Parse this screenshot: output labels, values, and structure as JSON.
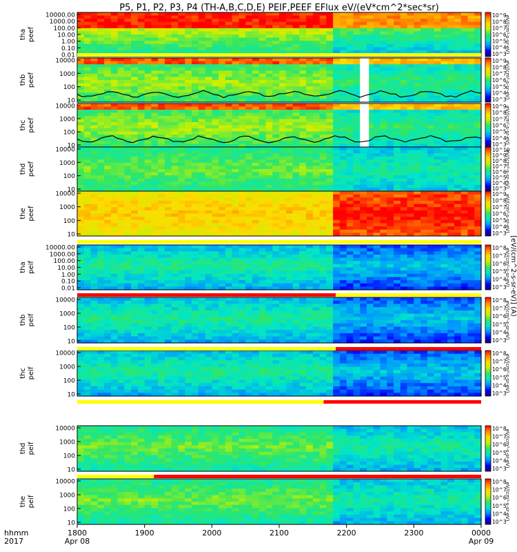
{
  "title": "P5, P1, P2, P3, P4 (TH-A,B,C,D,E) PEIF,PEEF EFlux eV/(eV*cm^2*sec*sr)",
  "colorbar_title": "[eV/(cm^2-s-sr-eV)] (A)",
  "colors": {
    "colormap": [
      "#1a0066",
      "#0000ff",
      "#0096ff",
      "#00e6c8",
      "#32e664",
      "#c8f000",
      "#ffdc00",
      "#ff8c00",
      "#ff0000"
    ],
    "boundary_line": "#000000",
    "flag_red": "#ff0000",
    "flag_yellow": "#ffff00",
    "data_gap": "#ffffff"
  },
  "x_axis": {
    "label_line1": "hhmm",
    "label_line2": "2017",
    "ticks": [
      {
        "time": "1800",
        "date": "Apr 08"
      },
      {
        "time": "1900",
        "date": ""
      },
      {
        "time": "2000",
        "date": ""
      },
      {
        "time": "2100",
        "date": ""
      },
      {
        "time": "2200",
        "date": ""
      },
      {
        "time": "2300",
        "date": ""
      },
      {
        "time": "0000",
        "date": "Apr 09"
      }
    ]
  },
  "chart_data": [
    {
      "type": "heatmap",
      "probe": "tha",
      "species": "peef",
      "ylabel": [
        "tha",
        "peef"
      ],
      "y_ticks": [
        "10000.00",
        "1000.00",
        "100.00",
        "10.00",
        "1.00",
        "0.10",
        "0.01"
      ],
      "colorbar_ticks": [
        "10^9",
        "10^8",
        "10^7",
        "10^6",
        "10^5",
        "10^4",
        "10^3"
      ],
      "colorbar_label": "eV/(cm²-s-sr-eV)"
    },
    {
      "type": "heatmap",
      "probe": "thb",
      "species": "peef",
      "ylabel": [
        "thb",
        "peef"
      ],
      "y_ticks": [
        "10000",
        "1000",
        "100",
        "10"
      ],
      "colorbar_ticks": [
        "10^9",
        "10^8",
        "10^7",
        "10^6",
        "10^5",
        "10^4",
        "10^3"
      ],
      "colorbar_label": "eV/(cm²-s-sr-eV)"
    },
    {
      "type": "heatmap",
      "probe": "thc",
      "species": "peef",
      "ylabel": [
        "thc",
        "peef"
      ],
      "y_ticks": [
        "10000",
        "1000",
        "100",
        "10"
      ],
      "colorbar_ticks": [
        "10^9",
        "10^8",
        "10^7",
        "10^6",
        "10^5",
        "10^4",
        "10^3"
      ],
      "colorbar_label": "eV/(cm²-s-sr-eV)"
    },
    {
      "type": "heatmap",
      "probe": "thd",
      "species": "peef",
      "ylabel": [
        "thd",
        "peef"
      ],
      "y_ticks": [
        "10000",
        "1000",
        "100",
        "10"
      ],
      "colorbar_ticks": [
        "10^10",
        "10^9",
        "10^8",
        "10^7",
        "10^6",
        "10^5",
        "10^4",
        "10^3"
      ],
      "colorbar_label": "eV/(cm²-s-sr-eV)"
    },
    {
      "type": "heatmap",
      "probe": "the",
      "species": "peef",
      "ylabel": [
        "the",
        "peef"
      ],
      "y_ticks": [
        "10000",
        "1000",
        "100",
        "10"
      ],
      "colorbar_ticks": [
        "10^9",
        "10^8",
        "10^7",
        "10^6",
        "10^5",
        "10^4",
        "10^3"
      ],
      "colorbar_label": "eV/(cm²-s-sr-eV)"
    },
    {
      "type": "heatmap",
      "probe": "tha",
      "species": "peif",
      "ylabel": [
        "tha",
        "peif"
      ],
      "y_ticks": [
        "10000.00",
        "1000.00",
        "100.00",
        "10.00",
        "1.00",
        "0.10",
        "0.01"
      ],
      "colorbar_ticks": [
        "10^8",
        "10^7",
        "10^6",
        "10^5",
        "10^4",
        "10^3"
      ],
      "colorbar_label": "eV/(cm²-s-sr-eV)"
    },
    {
      "type": "heatmap",
      "probe": "thb",
      "species": "peif",
      "ylabel": [
        "thb",
        "peif"
      ],
      "y_ticks": [
        "10000",
        "1000",
        "100",
        "10"
      ],
      "colorbar_ticks": [
        "10^8",
        "10^7",
        "10^6",
        "10^5",
        "10^4",
        "10^3"
      ],
      "colorbar_label": "eV/(cm²-s-sr-eV)"
    },
    {
      "type": "heatmap",
      "probe": "thc",
      "species": "peif",
      "ylabel": [
        "thc",
        "peif"
      ],
      "y_ticks": [
        "10000",
        "1000",
        "100",
        "10"
      ],
      "colorbar_ticks": [
        "10^8",
        "10^7",
        "10^6",
        "10^5",
        "10^4",
        "10^3"
      ],
      "colorbar_label": "eV/(cm²-s-sr-eV)"
    },
    {
      "type": "heatmap",
      "probe": "thd",
      "species": "peif",
      "ylabel": [
        "thd",
        "peif"
      ],
      "y_ticks": [
        "10000",
        "1000",
        "100",
        "10"
      ],
      "colorbar_ticks": [
        "10^8",
        "10^7",
        "10^6",
        "10^5",
        "10^4",
        "10^3"
      ],
      "colorbar_label": "eV/(cm²-s-sr-eV)"
    },
    {
      "type": "heatmap",
      "probe": "the",
      "species": "peif",
      "ylabel": [
        "the",
        "peif"
      ],
      "y_ticks": [
        "10000",
        "1000",
        "100",
        "10"
      ],
      "colorbar_ticks": [
        "10^8",
        "10^7",
        "10^6",
        "10^5",
        "10^4",
        "10^3"
      ],
      "colorbar_label": "eV/(cm²-s-sr-eV)"
    }
  ]
}
